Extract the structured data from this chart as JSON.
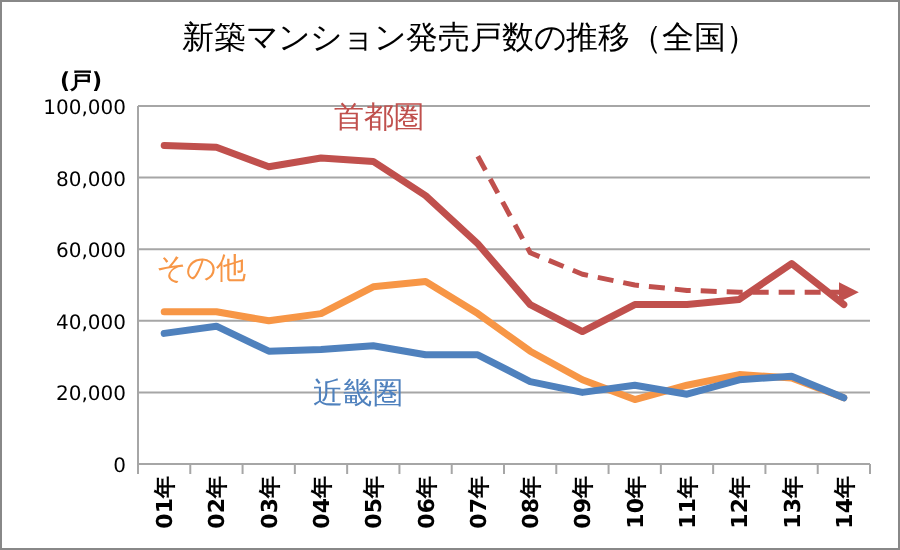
{
  "chart_data": {
    "type": "line",
    "title": "新築マンション発売戸数の推移（全国）",
    "ylabel": "(戸)",
    "categories": [
      "01年",
      "02年",
      "03年",
      "04年",
      "05年",
      "06年",
      "07年",
      "08年",
      "09年",
      "10年",
      "11年",
      "12年",
      "13年",
      "14年"
    ],
    "ylim": [
      0,
      100000
    ],
    "yticks": [
      0,
      {
        "value": 20000,
        "label": "20,000"
      },
      {
        "value": 40000,
        "label": "40,000"
      },
      {
        "value": 60000,
        "label": "60,000"
      },
      {
        "value": 80000,
        "label": "80,000"
      },
      {
        "value": 100000,
        "label": "100,000"
      }
    ],
    "grid": "y",
    "marker": "none",
    "series": [
      {
        "name": "首都圏",
        "color": "#c0504d",
        "values": [
          89000,
          88500,
          83000,
          85500,
          84500,
          75000,
          61500,
          44500,
          37000,
          44500,
          44500,
          46000,
          56000,
          44500
        ]
      },
      {
        "name": "その他",
        "color": "#f79646",
        "values": [
          42500,
          42500,
          40000,
          42000,
          49500,
          51000,
          42000,
          31500,
          23500,
          18000,
          22000,
          25000,
          24000,
          18500
        ]
      },
      {
        "name": "近畿圏",
        "color": "#4f81bd",
        "values": [
          36500,
          38500,
          31500,
          32000,
          33000,
          30500,
          30500,
          23000,
          20000,
          22000,
          19500,
          23500,
          24500,
          18500
        ]
      },
      {
        "color": "#c0504d",
        "line_style": "dashed",
        "values": [
          null,
          null,
          null,
          null,
          null,
          null,
          86000,
          59000,
          53000,
          50000,
          48500,
          48000,
          48000,
          48000
        ]
      }
    ]
  }
}
